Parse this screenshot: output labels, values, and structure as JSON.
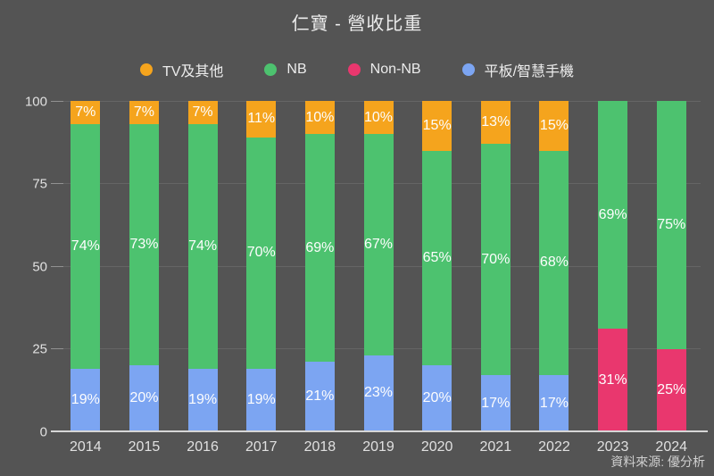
{
  "title": "仁寶 - 營收比重",
  "footer": {
    "source": "資料來源: 優分析"
  },
  "colors": {
    "background": "#545454",
    "axis_line": "#d6d6d6",
    "tick": "#919191",
    "grid": "rgba(255,255,255,0.10)",
    "label_text": "#e0e0e0",
    "bar_label_text": "#fdfdfd",
    "orange": "#f5a41d",
    "green": "#4dc26f",
    "pink": "#e9376e",
    "blue": "#7ca5f2"
  },
  "chart_data": {
    "type": "bar",
    "stacked": true,
    "title": "仁寶 - 營收比重",
    "categories": [
      "2014",
      "2015",
      "2016",
      "2017",
      "2018",
      "2019",
      "2020",
      "2021",
      "2022",
      "2023",
      "2024"
    ],
    "series": [
      {
        "name": "平板/智慧手機",
        "color": "#7ca5f2",
        "values": [
          19,
          20,
          19,
          19,
          21,
          23,
          20,
          17,
          17,
          0,
          0
        ]
      },
      {
        "name": "Non-NB",
        "color": "#e9376e",
        "values": [
          0,
          0,
          0,
          0,
          0,
          0,
          0,
          0,
          0,
          31,
          25
        ]
      },
      {
        "name": "NB",
        "color": "#4dc26f",
        "values": [
          74,
          73,
          74,
          70,
          69,
          67,
          65,
          70,
          68,
          69,
          75
        ]
      },
      {
        "name": "TV及其他",
        "color": "#f5a41d",
        "values": [
          7,
          7,
          7,
          11,
          10,
          10,
          15,
          13,
          15,
          0,
          0
        ]
      }
    ],
    "legend": [
      {
        "label": "TV及其他",
        "color": "#f5a41d"
      },
      {
        "label": "NB",
        "color": "#4dc26f"
      },
      {
        "label": "Non-NB",
        "color": "#e9376e"
      },
      {
        "label": "平板/智慧手機",
        "color": "#7ca5f2"
      }
    ],
    "legend_position": "top",
    "value_suffix": "%",
    "xlabel": "",
    "ylabel": "",
    "ylim": [
      0,
      100
    ],
    "yticks": [
      0,
      25,
      50,
      75,
      100
    ],
    "grid": true
  }
}
